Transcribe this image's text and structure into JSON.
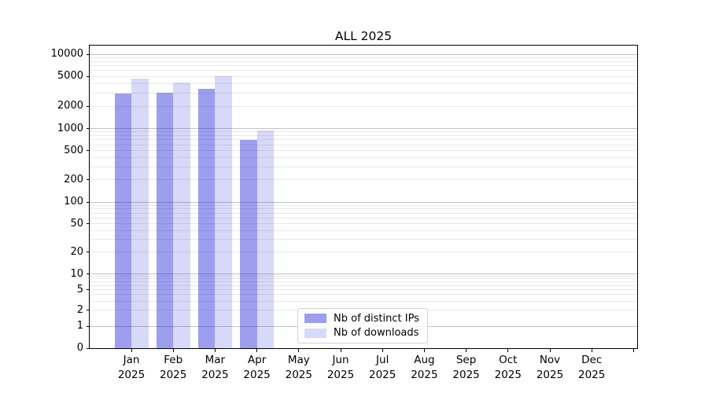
{
  "chart_data": {
    "type": "bar",
    "title": "ALL 2025",
    "categories": [
      "Jan 2025",
      "Feb 2025",
      "Mar 2025",
      "Apr 2025",
      "May 2025",
      "Jun 2025",
      "Jul 2025",
      "Aug 2025",
      "Sep 2025",
      "Oct 2025",
      "Nov 2025",
      "Dec 2025"
    ],
    "series": [
      {
        "name": "Nb of distinct IPs",
        "legend_color": "#9d9dee",
        "bar_color": "rgba(5,5,213,0.39)",
        "values": [
          2950,
          3030,
          3400,
          700,
          null,
          null,
          null,
          null,
          null,
          null,
          null,
          null
        ]
      },
      {
        "name": "Nb of downloads",
        "legend_color": "#d8d8f8",
        "bar_color": "rgba(5,5,213,0.155)",
        "values": [
          4700,
          4150,
          5050,
          940,
          null,
          null,
          null,
          null,
          null,
          null,
          null,
          null
        ]
      }
    ],
    "y_axis": {
      "scale": "symlog",
      "ticks": [
        0,
        1,
        2,
        5,
        10,
        20,
        50,
        100,
        200,
        500,
        1000,
        2000,
        5000,
        10000
      ],
      "ylim": [
        0,
        13000
      ]
    },
    "grid": {
      "on": true,
      "major_color": "#c3c3c3",
      "minor_color": "#e9e9e9"
    },
    "legend": {
      "position": "lower-center-inside"
    }
  }
}
